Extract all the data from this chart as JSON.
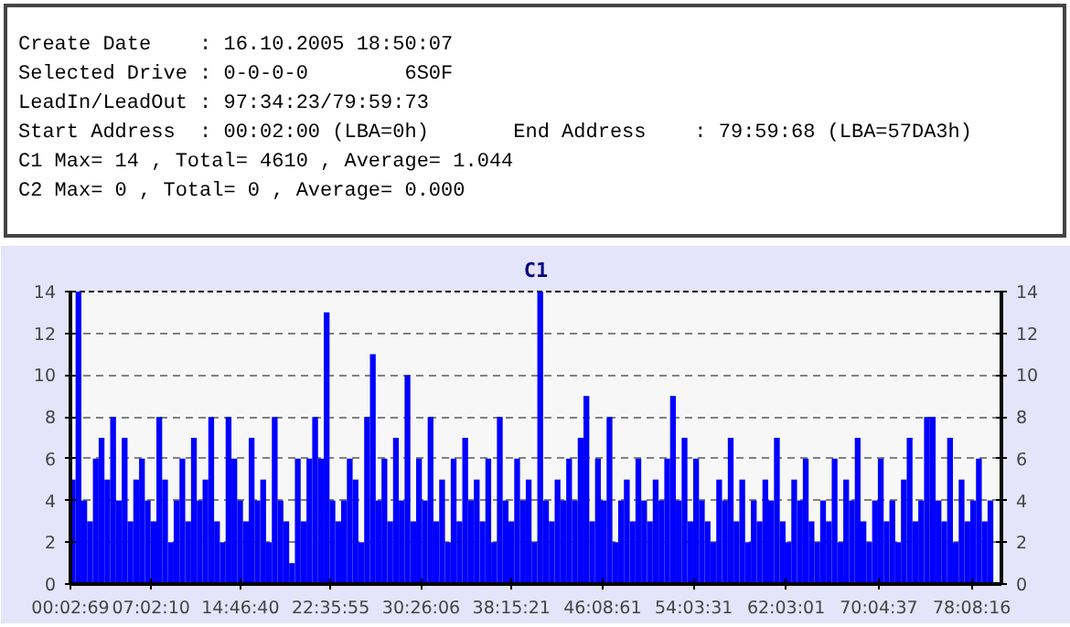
{
  "chart_data": {
    "type": "bar",
    "title": "C1",
    "annotations": [
      "Create Date    : 16.10.2005 18:50:07",
      "Selected Drive : 0-0-0-0        6S0F",
      "LeadIn/LeadOut : 97:34:23/79:59:73",
      "Start Address  : 00:02:00 (LBA=0h)       End Address    : 79:59:68 (LBA=57DA3h)",
      "C1 Max= 14 , Total= 4610 , Average= 1.044",
      "C2 Max= 0 , Total= 0 , Average= 0.000"
    ],
    "x": [
      0.25,
      0.75,
      1.25,
      1.75,
      2.25,
      2.75,
      3.25,
      3.75,
      4.25,
      4.75,
      5.25,
      5.75,
      6.25,
      6.75,
      7.25,
      7.75,
      8.25,
      8.75,
      9.25,
      9.75,
      10.25,
      10.75,
      11.25,
      11.75,
      12.25,
      12.75,
      13.25,
      13.75,
      14.25,
      14.75,
      15.25,
      15.75,
      16.25,
      16.75,
      17.25,
      17.75,
      18.25,
      18.75,
      19.25,
      19.75,
      20.25,
      20.75,
      21.25,
      21.75,
      22.25,
      22.75,
      23.25,
      23.75,
      24.25,
      24.75,
      25.25,
      25.75,
      26.25,
      26.75,
      27.25,
      27.75,
      28.25,
      28.75,
      29.25,
      29.75,
      30.25,
      30.75,
      31.25,
      31.75,
      32.25,
      32.75,
      33.25,
      33.75,
      34.25,
      34.75,
      35.25,
      35.75,
      36.25,
      36.75,
      37.25,
      37.75,
      38.25,
      38.75,
      39.25,
      39.75,
      40.25,
      40.75,
      41.25,
      41.75,
      42.25,
      42.75,
      43.25,
      43.75,
      44.25,
      44.75,
      45.25,
      45.75,
      46.25,
      46.75,
      47.25,
      47.75,
      48.25,
      48.75,
      49.25,
      49.75,
      50.25,
      50.75,
      51.25,
      51.75,
      52.25,
      52.75,
      53.25,
      53.75,
      54.25,
      54.75,
      55.25,
      55.75,
      56.25,
      56.75,
      57.25,
      57.75,
      58.25,
      58.75,
      59.25,
      59.75,
      60.25,
      60.75,
      61.25,
      61.75,
      62.25,
      62.75,
      63.25,
      63.75,
      64.25,
      64.75,
      65.25,
      65.75,
      66.25,
      66.75,
      67.25,
      67.75,
      68.25,
      68.75,
      69.25,
      69.75,
      70.25,
      70.75,
      71.25,
      71.75,
      72.25,
      72.75,
      73.25,
      73.75,
      74.25,
      74.75,
      75.25,
      75.75,
      76.25,
      76.75,
      77.25,
      77.75,
      78.25,
      78.75,
      79.25,
      79.75
    ],
    "values": [
      5,
      14,
      4,
      3,
      6,
      7,
      5,
      8,
      4,
      7,
      3,
      5,
      6,
      4,
      3,
      8,
      5,
      2,
      4,
      6,
      3,
      7,
      4,
      5,
      8,
      3,
      2,
      8,
      6,
      4,
      3,
      7,
      4,
      5,
      2,
      8,
      4,
      3,
      1,
      6,
      3,
      6,
      8,
      6,
      13,
      4,
      3,
      4,
      6,
      5,
      2,
      8,
      11,
      4,
      6,
      3,
      7,
      4,
      10,
      3,
      6,
      4,
      8,
      3,
      5,
      2,
      6,
      3,
      7,
      4,
      5,
      3,
      6,
      2,
      8,
      4,
      3,
      6,
      4,
      5,
      2,
      14,
      4,
      3,
      5,
      4,
      6,
      4,
      7,
      9,
      3,
      6,
      4,
      8,
      2,
      4,
      5,
      3,
      6,
      4,
      3,
      5,
      4,
      6,
      9,
      4,
      7,
      3,
      6,
      4,
      3,
      2,
      5,
      4,
      7,
      3,
      5,
      2,
      4,
      3,
      5,
      4,
      7,
      3,
      2,
      5,
      4,
      6,
      3,
      2,
      4,
      3,
      6,
      2,
      5,
      4,
      7,
      3,
      2,
      4,
      6,
      3,
      4,
      2,
      5,
      7,
      3,
      4,
      8,
      8,
      4,
      3,
      7,
      2,
      5,
      3,
      4,
      6,
      3,
      4
    ],
    "color": "#0000ff",
    "xlim": [
      0.0525,
      80.7
    ],
    "xticks": [
      {
        "value": 0.0525,
        "label": "00:02:69"
      },
      {
        "value": 7.03611,
        "label": "07:02:10"
      },
      {
        "value": 14.77778,
        "label": "14:46:40"
      },
      {
        "value": 22.59861,
        "label": "22:35:55"
      },
      {
        "value": 30.435,
        "label": "30:26:06"
      },
      {
        "value": 38.25583,
        "label": "38:15:21"
      },
      {
        "value": 46.15028,
        "label": "46:08:61"
      },
      {
        "value": 54.05861,
        "label": "54:03:31"
      },
      {
        "value": 62.05028,
        "label": "62:03:01"
      },
      {
        "value": 70.07694,
        "label": "70:04:37"
      },
      {
        "value": 78.13778,
        "label": "78:08:16"
      }
    ],
    "ylim": [
      0,
      14
    ],
    "yticks": [
      0,
      2,
      4,
      6,
      8,
      10,
      12,
      14
    ],
    "y2lim": [
      0,
      14
    ],
    "y2ticks": [
      0,
      2,
      4,
      6,
      8,
      10,
      12,
      14
    ],
    "grid": "y"
  }
}
